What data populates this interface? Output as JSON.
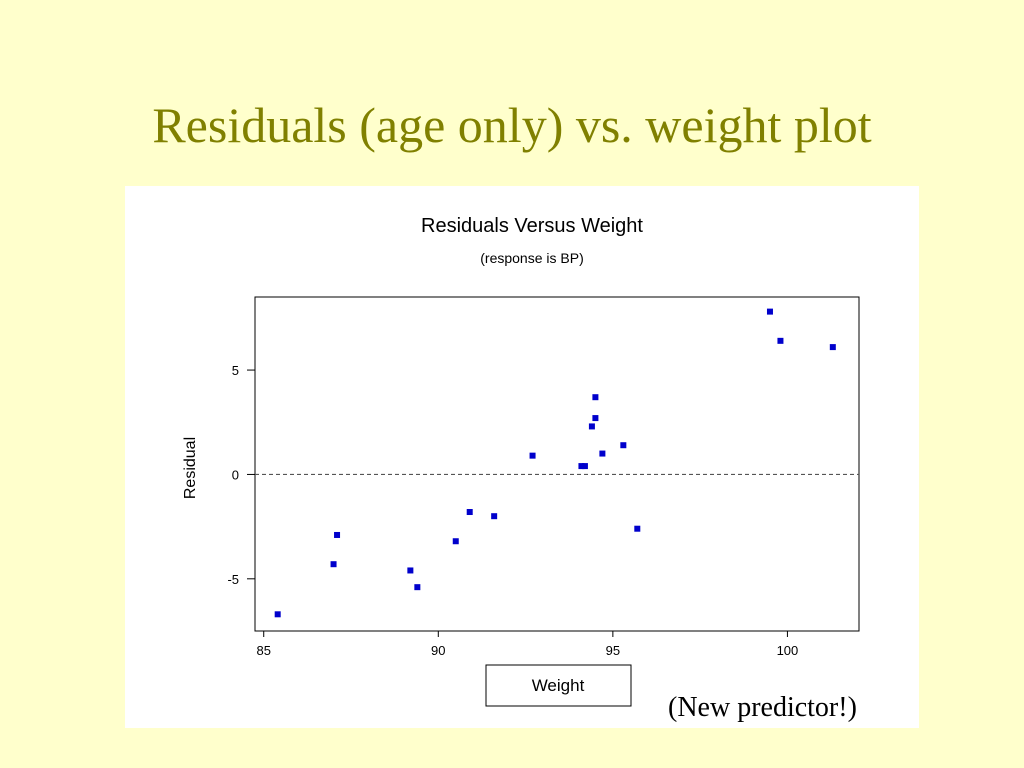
{
  "slide": {
    "title": "Residuals (age only) vs. weight plot",
    "note": "(New predictor!)"
  },
  "chart_data": {
    "type": "scatter",
    "title": "Residuals Versus Weight",
    "subtitle": "(response is BP)",
    "xlabel": "Weight",
    "ylabel": "Residual",
    "xlim": [
      84.75,
      102.05
    ],
    "ylim": [
      -7.5,
      8.5
    ],
    "xticks": [
      85,
      90,
      95,
      100
    ],
    "yticks": [
      -5,
      0,
      5
    ],
    "reference_line": 0,
    "grid": false,
    "point_color": "#0000cc",
    "points": [
      {
        "x": 85.4,
        "y": -6.7
      },
      {
        "x": 87.0,
        "y": -4.3
      },
      {
        "x": 87.1,
        "y": -2.9
      },
      {
        "x": 89.2,
        "y": -4.6
      },
      {
        "x": 89.4,
        "y": -5.4
      },
      {
        "x": 90.5,
        "y": -3.2
      },
      {
        "x": 90.9,
        "y": -1.8
      },
      {
        "x": 91.6,
        "y": -2.0
      },
      {
        "x": 92.7,
        "y": 0.9
      },
      {
        "x": 94.1,
        "y": 0.4
      },
      {
        "x": 94.2,
        "y": 0.4
      },
      {
        "x": 94.4,
        "y": 2.3
      },
      {
        "x": 94.5,
        "y": 2.7
      },
      {
        "x": 94.5,
        "y": 3.7
      },
      {
        "x": 94.7,
        "y": 1.0
      },
      {
        "x": 95.3,
        "y": 1.4
      },
      {
        "x": 95.7,
        "y": -2.6
      },
      {
        "x": 99.5,
        "y": 7.8
      },
      {
        "x": 99.8,
        "y": 6.4
      },
      {
        "x": 101.3,
        "y": 6.1
      }
    ]
  }
}
